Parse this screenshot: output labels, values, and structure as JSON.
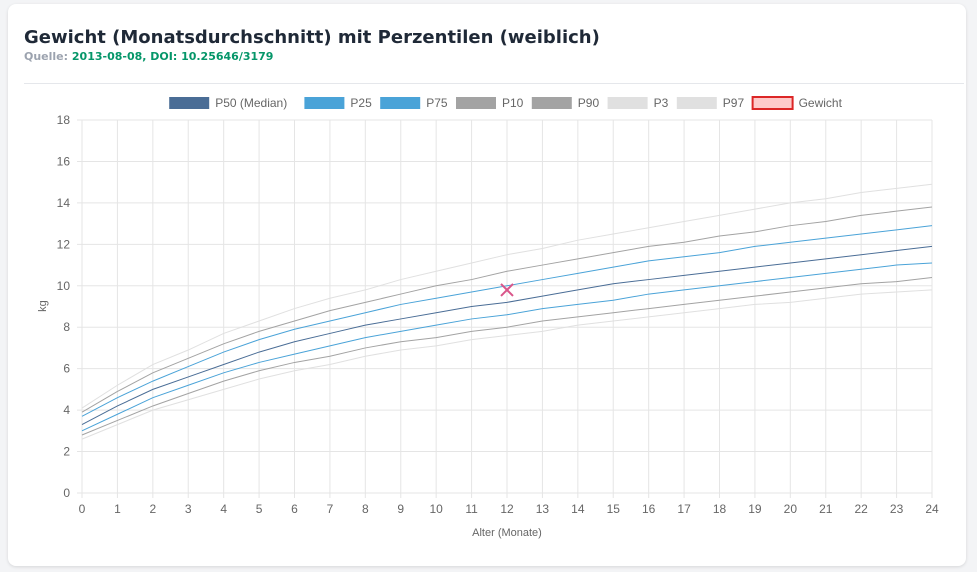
{
  "header": {
    "title": "Gewicht (Monatsdurchschnitt) mit Perzentilen (weiblich)",
    "source_label": "Quelle:",
    "source_value": "2013-08-08, DOI: 10.25646/3179"
  },
  "chart_data": {
    "type": "line",
    "title": "",
    "xlabel": "Alter (Monate)",
    "ylabel": "kg",
    "xlim": [
      0,
      24
    ],
    "ylim": [
      0,
      18
    ],
    "x_ticks": [
      0,
      1,
      2,
      3,
      4,
      5,
      6,
      7,
      8,
      9,
      10,
      11,
      12,
      13,
      14,
      15,
      16,
      17,
      18,
      19,
      20,
      21,
      22,
      23,
      24
    ],
    "y_ticks": [
      0,
      2,
      4,
      6,
      8,
      10,
      12,
      14,
      16,
      18
    ],
    "grid": true,
    "legend_position": "top",
    "x": [
      0,
      1,
      2,
      3,
      4,
      5,
      6,
      7,
      8,
      9,
      10,
      11,
      12,
      13,
      14,
      15,
      16,
      17,
      18,
      19,
      20,
      21,
      22,
      23,
      24
    ],
    "series": [
      {
        "name": "P50 (Median)",
        "color": "#4a6d96",
        "fill": "#4a6d96",
        "width": 1,
        "values": [
          3.3,
          4.2,
          5.0,
          5.6,
          6.2,
          6.8,
          7.3,
          7.7,
          8.1,
          8.4,
          8.7,
          9.0,
          9.2,
          9.5,
          9.8,
          10.1,
          10.3,
          10.5,
          10.7,
          10.9,
          11.1,
          11.3,
          11.5,
          11.7,
          11.9
        ]
      },
      {
        "name": "P25",
        "color": "#4aa3d8",
        "fill": "#4aa3d8",
        "width": 1,
        "values": [
          3.0,
          3.8,
          4.6,
          5.2,
          5.8,
          6.3,
          6.7,
          7.1,
          7.5,
          7.8,
          8.1,
          8.4,
          8.6,
          8.9,
          9.1,
          9.3,
          9.6,
          9.8,
          10.0,
          10.2,
          10.4,
          10.6,
          10.8,
          11.0,
          11.1
        ]
      },
      {
        "name": "P75",
        "color": "#4aa3d8",
        "fill": "#4aa3d8",
        "width": 1,
        "values": [
          3.7,
          4.6,
          5.4,
          6.1,
          6.8,
          7.4,
          7.9,
          8.3,
          8.7,
          9.1,
          9.4,
          9.7,
          10.0,
          10.3,
          10.6,
          10.9,
          11.2,
          11.4,
          11.6,
          11.9,
          12.1,
          12.3,
          12.5,
          12.7,
          12.9
        ]
      },
      {
        "name": "P10",
        "color": "#a3a3a3",
        "fill": "#a3a3a3",
        "width": 1,
        "values": [
          2.8,
          3.5,
          4.2,
          4.8,
          5.4,
          5.9,
          6.3,
          6.6,
          7.0,
          7.3,
          7.5,
          7.8,
          8.0,
          8.3,
          8.5,
          8.7,
          8.9,
          9.1,
          9.3,
          9.5,
          9.7,
          9.9,
          10.1,
          10.2,
          10.4
        ]
      },
      {
        "name": "P90",
        "color": "#a3a3a3",
        "fill": "#a3a3a3",
        "width": 1,
        "values": [
          3.9,
          4.9,
          5.8,
          6.5,
          7.2,
          7.8,
          8.3,
          8.8,
          9.2,
          9.6,
          10.0,
          10.3,
          10.7,
          11.0,
          11.3,
          11.6,
          11.9,
          12.1,
          12.4,
          12.6,
          12.9,
          13.1,
          13.4,
          13.6,
          13.8
        ]
      },
      {
        "name": "P3",
        "color": "#e0e0e0",
        "fill": "#e0e0e0",
        "width": 1,
        "values": [
          2.6,
          3.3,
          4.0,
          4.5,
          5.0,
          5.5,
          5.9,
          6.2,
          6.6,
          6.9,
          7.1,
          7.4,
          7.6,
          7.8,
          8.1,
          8.3,
          8.5,
          8.7,
          8.9,
          9.1,
          9.2,
          9.4,
          9.6,
          9.7,
          9.8
        ]
      },
      {
        "name": "P97",
        "color": "#e0e0e0",
        "fill": "#e0e0e0",
        "width": 1,
        "values": [
          4.1,
          5.2,
          6.2,
          6.9,
          7.7,
          8.3,
          8.9,
          9.4,
          9.8,
          10.3,
          10.7,
          11.1,
          11.5,
          11.8,
          12.2,
          12.5,
          12.8,
          13.1,
          13.4,
          13.7,
          14.0,
          14.2,
          14.5,
          14.7,
          14.9
        ]
      }
    ],
    "points": [
      {
        "name": "Gewicht",
        "color": "#dc2626",
        "fill": "#fecaca",
        "marker_color": "#d9558a",
        "x": 12,
        "y": 9.8
      }
    ]
  }
}
